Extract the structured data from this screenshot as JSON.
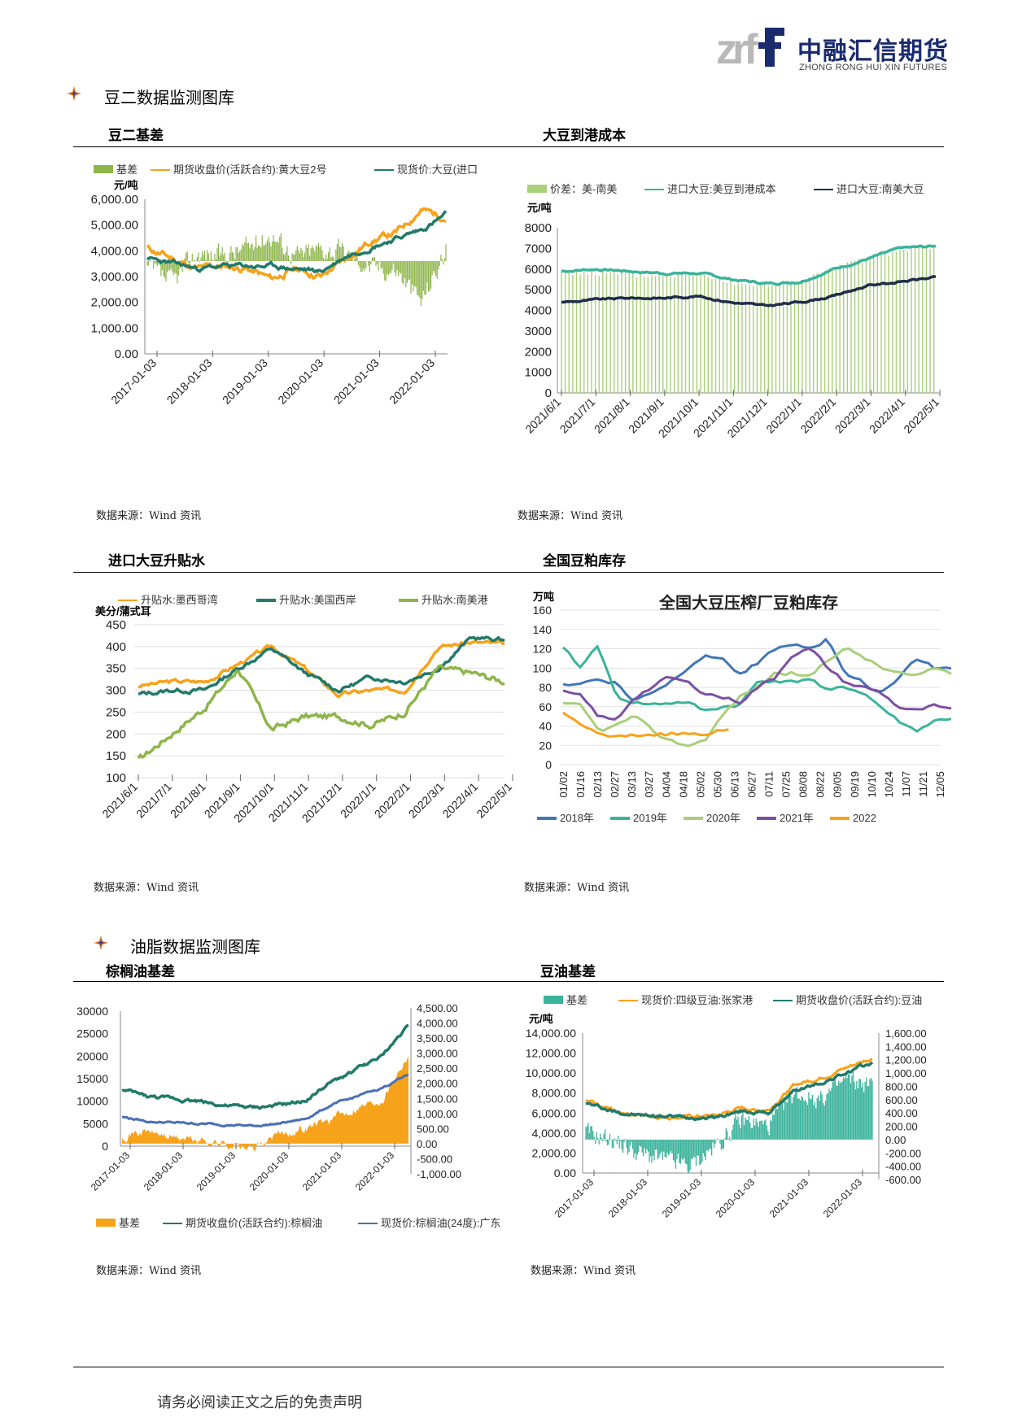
{
  "header": {
    "logo_letters": "zrf",
    "company_cn": "中融汇信期货",
    "company_en": "ZHONG RONG HUI XIN FUTURES"
  },
  "sections": [
    {
      "title": "豆二数据监测图库"
    },
    {
      "title": "油脂数据监测图库"
    }
  ],
  "charts": {
    "c1": {
      "title": "豆二基差",
      "source": "数据来源：Wind 资讯"
    },
    "c2": {
      "title": "大豆到港成本",
      "source": "数据来源：Wind 资讯"
    },
    "c3": {
      "title": "进口大豆升贴水",
      "source": "数据来源：Wind 资讯"
    },
    "c4": {
      "title": "全国豆粕库存",
      "source": "数据来源：Wind 资讯"
    },
    "c5": {
      "title": "棕榈油基差",
      "source": "数据来源：Wind 资讯"
    },
    "c6": {
      "title": "豆油基差",
      "source": "数据来源：Wind 资讯"
    }
  },
  "footer": {
    "text": "请务必阅读正文之后的免责声明"
  },
  "chart_data": [
    {
      "id": "c1",
      "type": "line",
      "ylabel": "元/吨",
      "yticks": [
        "6,000.00",
        "5,000.00",
        "4,000.00",
        "3,000.00",
        "2,000.00",
        "1,000.00",
        "0.00"
      ],
      "ylim": [
        0,
        6000
      ],
      "xticks": [
        "2017-01-03",
        "2018-01-03",
        "2019-01-03",
        "2020-01-03",
        "2021-01-03",
        "2022-01-03"
      ],
      "legend": [
        "基差",
        "期货收盘价(活跃合约):黄大豆2号",
        "现货价:大豆(进口"
      ],
      "colors": {
        "basis": "#8db54a",
        "futures": "#f7a21b",
        "spot": "#217a6a"
      },
      "series_approx": {
        "x": [
          2017.0,
          2017.5,
          2018.0,
          2018.5,
          2019.0,
          2019.5,
          2020.0,
          2020.5,
          2021.0,
          2021.5,
          2022.0,
          2022.3,
          2022.45
        ],
        "futures": [
          4100,
          3700,
          3300,
          3400,
          3300,
          2900,
          3300,
          3000,
          3700,
          4400,
          4700,
          5600,
          5300
        ],
        "spot": [
          3700,
          3500,
          3300,
          3400,
          3400,
          3400,
          3300,
          3200,
          3800,
          4200,
          4500,
          4800,
          5400
        ],
        "basis": [
          -300,
          -800,
          300,
          200,
          500,
          1000,
          200,
          500,
          300,
          -200,
          -300,
          -1500,
          400
        ]
      }
    },
    {
      "id": "c2",
      "type": "line",
      "ylabel": "元/吨",
      "yticks": [
        "8000",
        "7000",
        "6000",
        "5000",
        "4000",
        "3000",
        "2000",
        "1000",
        "0"
      ],
      "ylim": [
        0,
        8000
      ],
      "xticks": [
        "2021/6/1",
        "2021/7/1",
        "2021/8/1",
        "2021/9/1",
        "2021/10/1",
        "2021/11/1",
        "2021/12/1",
        "2022/1/1",
        "2022/2/1",
        "2022/3/1",
        "2022/4/1",
        "2022/5/1"
      ],
      "legend": [
        "价差：美-南美",
        "进口大豆:美豆到港成本",
        "进口大豆:南美大豆"
      ],
      "colors": {
        "spread": "#a9cf7a",
        "us": "#3bb39b",
        "sa": "#1f2d4a"
      },
      "series_approx": {
        "x": [
          0,
          1,
          2,
          3,
          4,
          5,
          6,
          7,
          8,
          9,
          10,
          10.6
        ],
        "us": [
          5900,
          6000,
          5900,
          5800,
          5800,
          5500,
          5300,
          5400,
          6000,
          6500,
          7000,
          7100
        ],
        "sa": [
          4400,
          4500,
          4600,
          4600,
          4700,
          4400,
          4200,
          4400,
          4700,
          5200,
          5400,
          5600
        ],
        "spread": [
          5900,
          5800,
          5700,
          5700,
          5800,
          5400,
          5200,
          5400,
          6000,
          6500,
          6900,
          7000
        ]
      }
    },
    {
      "id": "c3",
      "type": "line",
      "ylabel": "美分/蒲式耳",
      "yticks": [
        "450",
        "400",
        "350",
        "300",
        "250",
        "200",
        "150",
        "100"
      ],
      "ylim": [
        100,
        450
      ],
      "xticks": [
        "2021/6/1",
        "2021/7/1",
        "2021/8/1",
        "2021/9/1",
        "2021/10/1",
        "2021/11/1",
        "2021/12/1",
        "2022/1/1",
        "2022/2/1",
        "2022/3/1",
        "2022/4/1",
        "2022/5/1"
      ],
      "legend": [
        "升贴水:墨西哥湾",
        "升贴水:美国西岸",
        "升贴水:南美港"
      ],
      "colors": {
        "gulf": "#f7a21b",
        "west": "#217a6a",
        "sa": "#8db54a"
      },
      "series_approx": {
        "x": [
          0,
          1,
          2,
          3,
          4,
          5,
          6,
          7,
          8,
          9,
          10,
          10.8
        ],
        "gulf": [
          310,
          320,
          320,
          360,
          400,
          350,
          290,
          300,
          300,
          400,
          410,
          405
        ],
        "west": [
          290,
          300,
          300,
          350,
          395,
          340,
          300,
          330,
          320,
          350,
          420,
          415
        ],
        "sa": [
          140,
          200,
          260,
          350,
          210,
          240,
          240,
          220,
          250,
          350,
          340,
          320
        ]
      }
    },
    {
      "id": "c4",
      "type": "line",
      "title": "全国大豆压榨厂豆粕库存",
      "ylabel": "万吨",
      "yticks": [
        "160",
        "140",
        "120",
        "100",
        "80",
        "60",
        "40",
        "20",
        "0"
      ],
      "ylim": [
        0,
        160
      ],
      "xticks": [
        "01/02",
        "01/16",
        "02/13",
        "02/27",
        "03/13",
        "03/27",
        "04/04",
        "04/18",
        "05/02",
        "05/30",
        "06/13",
        "06/27",
        "07/11",
        "07/25",
        "08/08",
        "08/22",
        "09/05",
        "09/19",
        "10/10",
        "10/24",
        "11/07",
        "11/21",
        "12/05"
      ],
      "legend": [
        "2018年",
        "2019年",
        "2020年",
        "2021年",
        "2022"
      ],
      "colors": {
        "y2018": "#4177b6",
        "y2019": "#3bb39b",
        "y2020": "#a9cf7a",
        "y2021": "#7d4fa3",
        "y2022": "#f7a21b"
      },
      "series_approx": {
        "y2018": [
          82,
          85,
          88,
          85,
          65,
          75,
          85,
          100,
          115,
          110,
          95,
          105,
          120,
          122,
          120,
          130,
          95,
          85,
          75,
          90,
          110,
          100,
          98
        ],
        "y2019": [
          120,
          100,
          125,
          70,
          65,
          62,
          64,
          65,
          55,
          60,
          62,
          85,
          88,
          85,
          90,
          75,
          80,
          75,
          60,
          45,
          35,
          45,
          48
        ],
        "y2020": [
          62,
          60,
          35,
          40,
          50,
          35,
          25,
          20,
          25,
          50,
          70,
          80,
          95,
          95,
          90,
          110,
          120,
          112,
          100,
          95,
          90,
          100,
          95
        ],
        "y2021": [
          75,
          70,
          50,
          45,
          70,
          80,
          90,
          85,
          75,
          70,
          65,
          80,
          90,
          115,
          120,
          100,
          85,
          80,
          75,
          60,
          55,
          60,
          55
        ],
        "y2022": [
          52,
          42,
          30,
          28,
          30,
          32,
          32,
          32,
          30,
          38
        ]
      }
    },
    {
      "id": "c5",
      "type": "line",
      "yticks_left": [
        "30000",
        "25000",
        "20000",
        "15000",
        "10000",
        "5000",
        "0"
      ],
      "ylim_left": [
        0,
        30000
      ],
      "yticks_right": [
        "4,500.00",
        "4,000.00",
        "3,500.00",
        "3,000.00",
        "2,500.00",
        "2,000.00",
        "1,500.00",
        "1,000.00",
        "500.00",
        "0.00",
        "-500.00",
        "-1,000.00"
      ],
      "ylim_right": [
        -1000,
        4500
      ],
      "xticks": [
        "2017-01-03",
        "2018-01-03",
        "2019-01-03",
        "2020-01-03",
        "2021-01-03",
        "2022-01-03"
      ],
      "legend": [
        "基差",
        "期货收盘价(活跃合约):棕榈油",
        "现货价:棕榈油(24度):广东"
      ],
      "colors": {
        "basis": "#f7a21b",
        "futures": "#217a6a",
        "spot": "#4a6fb5"
      },
      "series_approx": {
        "x": [
          2017.0,
          2017.5,
          2018.0,
          2018.5,
          2019.0,
          2019.5,
          2020.0,
          2020.5,
          2021.0,
          2021.5,
          2022.0,
          2022.3
        ],
        "futures": [
          12500,
          11000,
          10500,
          10000,
          9000,
          8500,
          9000,
          10000,
          14000,
          17000,
          20000,
          27000
        ],
        "spot": [
          6500,
          5500,
          5200,
          5000,
          4800,
          4500,
          5000,
          6000,
          9000,
          11000,
          13000,
          16000
        ],
        "basis": [
          300,
          400,
          200,
          100,
          0,
          -200,
          300,
          500,
          800,
          1200,
          1500,
          3000
        ]
      }
    },
    {
      "id": "c6",
      "type": "line",
      "ylabel": "元/吨",
      "yticks_left": [
        "14,000.00",
        "12,000.00",
        "10,000.00",
        "8,000.00",
        "6,000.00",
        "4,000.00",
        "2,000.00",
        "0.00"
      ],
      "ylim_left": [
        0,
        14000
      ],
      "yticks_right": [
        "1,600.00",
        "1,400.00",
        "1,200.00",
        "1,000.00",
        "800.00",
        "600.00",
        "400.00",
        "200.00",
        "0.00",
        "-200.00",
        "-400.00",
        "-600.00"
      ],
      "ylim_right": [
        -600,
        1600
      ],
      "xticks": [
        "2017-01-03",
        "2018-01-03",
        "2019-01-03",
        "2020-01-03",
        "2021-01-03",
        "2022-01-03"
      ],
      "legend": [
        "基差",
        "现货价:四级豆油:张家港",
        "期货收盘价(活跃合约):豆油"
      ],
      "colors": {
        "basis": "#3bb39b",
        "spot": "#f7a21b",
        "futures": "#217a6a"
      },
      "series_approx": {
        "x": [
          2017.0,
          2017.5,
          2018.0,
          2018.5,
          2019.0,
          2019.5,
          2020.0,
          2020.5,
          2021.0,
          2021.5,
          2022.0,
          2022.3
        ],
        "futures": [
          7000,
          6200,
          5800,
          5700,
          5600,
          5600,
          6200,
          6000,
          8200,
          9000,
          10000,
          11000
        ],
        "spot": [
          7200,
          6300,
          5800,
          5600,
          5600,
          5700,
          6500,
          6300,
          8800,
          9500,
          10500,
          11500
        ],
        "basis": [
          100,
          0,
          -200,
          -300,
          -400,
          -100,
          300,
          200,
          700,
          600,
          900,
          800
        ]
      }
    }
  ]
}
